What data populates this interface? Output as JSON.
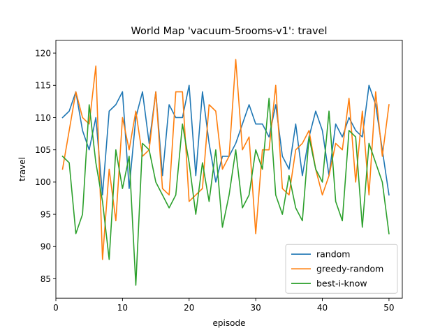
{
  "chart_data": {
    "type": "line",
    "title": "World Map 'vacuum-5rooms-v1': travel",
    "xlabel": "episode",
    "ylabel": "travel",
    "xlim": [
      0,
      52
    ],
    "ylim": [
      82,
      122
    ],
    "xticks": [
      0,
      10,
      20,
      30,
      40,
      50
    ],
    "yticks": [
      85,
      90,
      95,
      100,
      105,
      110,
      115,
      120
    ],
    "legend_position": "lower-right",
    "grid": false,
    "x": [
      1,
      2,
      3,
      4,
      5,
      6,
      7,
      8,
      9,
      10,
      11,
      12,
      13,
      14,
      15,
      16,
      17,
      18,
      19,
      20,
      21,
      22,
      23,
      24,
      25,
      26,
      27,
      28,
      29,
      30,
      31,
      32,
      33,
      34,
      35,
      36,
      37,
      38,
      39,
      40,
      41,
      42,
      43,
      44,
      45,
      46,
      47,
      48,
      49,
      50
    ],
    "series": [
      {
        "name": "random",
        "color": "#1f77b4",
        "values": [
          110,
          111,
          114,
          108,
          105,
          110,
          98,
          111,
          112,
          114,
          99,
          110,
          114,
          106,
          114,
          101,
          112,
          110,
          110,
          115,
          101,
          114,
          106,
          100,
          104,
          104,
          106,
          109,
          112,
          109,
          109,
          107,
          112,
          104,
          102,
          109,
          101,
          107,
          111,
          108,
          101,
          109,
          107,
          110,
          108,
          107,
          115,
          112,
          105,
          98
        ]
      },
      {
        "name": "greedy-random",
        "color": "#ff7f0e",
        "values": [
          102,
          108,
          114,
          110,
          109,
          118,
          88,
          102,
          94,
          110,
          105,
          111,
          104,
          105,
          114,
          99,
          98,
          114,
          114,
          97,
          98,
          99,
          112,
          111,
          102,
          104,
          119,
          105,
          107,
          92,
          105,
          105,
          115,
          99,
          98,
          105,
          106,
          108,
          102,
          98,
          101,
          106,
          105,
          113,
          100,
          111,
          98,
          114,
          104,
          112
        ]
      },
      {
        "name": "best-i-know",
        "color": "#2ca02c",
        "values": [
          104,
          103,
          92,
          95,
          112,
          103,
          97,
          88,
          105,
          99,
          104,
          84,
          106,
          105,
          100,
          98,
          96,
          98,
          109,
          103,
          95,
          103,
          97,
          105,
          93,
          98,
          105,
          96,
          98,
          105,
          102,
          113,
          98,
          95,
          101,
          96,
          94,
          107,
          102,
          100,
          111,
          97,
          94,
          108,
          107,
          93,
          106,
          103,
          100,
          92
        ]
      }
    ]
  }
}
